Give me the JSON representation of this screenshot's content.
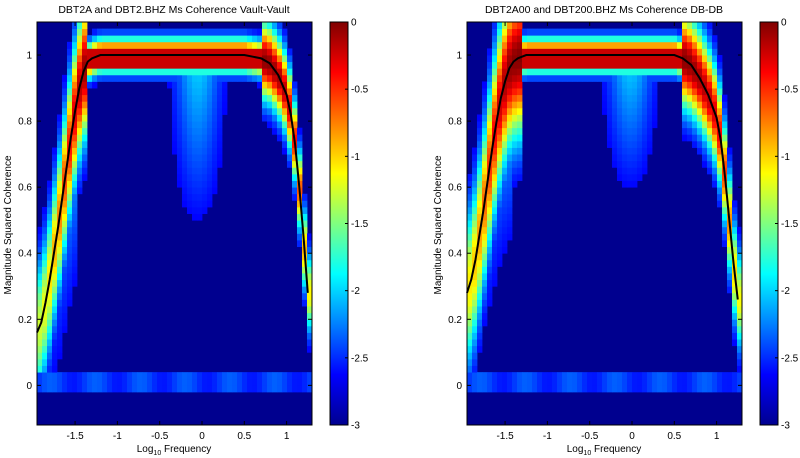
{
  "chart_data": [
    {
      "type": "heatmap",
      "title": "DBT2A and DBT2.BHZ Ms Coherence Vault-Vault",
      "xlabel": {
        "base": "Log",
        "sub": "10",
        "rest": " Frequency"
      },
      "ylabel": "Magnitude Squared Coherence",
      "xlim": [
        -1.95,
        1.3
      ],
      "ylim": [
        -0.12,
        1.1
      ],
      "xticks": [
        -1.5,
        -1,
        -0.5,
        0,
        0.5,
        1
      ],
      "xtick_labels": [
        "-1.5",
        "-1",
        "-0.5",
        "0",
        "0.5",
        "1"
      ],
      "yticks": [
        0,
        0.2,
        0.4,
        0.6,
        0.8,
        1
      ],
      "ytick_labels": [
        "0",
        "0.2",
        "0.4",
        "0.6",
        "0.8",
        "1"
      ],
      "colorbar": {
        "range": [
          -3,
          0
        ],
        "ticks": [
          0,
          -0.5,
          -1,
          -1.5,
          -2,
          -2.5,
          -3
        ],
        "tick_labels": [
          "0",
          "-0.5",
          "-1",
          "-1.5",
          "-2",
          "-2.5",
          "-3"
        ],
        "colormap": "jet"
      },
      "median_curve": {
        "x": [
          -1.95,
          -1.9,
          -1.85,
          -1.8,
          -1.75,
          -1.7,
          -1.65,
          -1.6,
          -1.55,
          -1.5,
          -1.45,
          -1.4,
          -1.35,
          -1.3,
          -1.25,
          -1.2,
          -1.1,
          -1.0,
          -0.5,
          0.0,
          0.5,
          0.6,
          0.7,
          0.8,
          0.9,
          1.0,
          1.05,
          1.1,
          1.15,
          1.2,
          1.25
        ],
        "y": [
          0.16,
          0.19,
          0.25,
          0.32,
          0.4,
          0.48,
          0.57,
          0.66,
          0.75,
          0.83,
          0.9,
          0.95,
          0.98,
          0.99,
          0.995,
          1.0,
          1.0,
          1.0,
          1.0,
          1.0,
          1.0,
          0.995,
          0.99,
          0.975,
          0.94,
          0.88,
          0.82,
          0.73,
          0.6,
          0.45,
          0.28
        ]
      },
      "heatmap_model": {
        "plateau_lo": -1.35,
        "plateau_hi": 0.7,
        "left_ramp": 0.14,
        "right_ramp": 0.08,
        "blob_center": -0.05,
        "blob_depth": 0.62,
        "bottom_band": [
          -0.015,
          0.035
        ]
      }
    },
    {
      "type": "heatmap",
      "title": "DBT2A00 and DBT200.BHZ Ms Coherence DB-DB",
      "xlabel": {
        "base": "Log",
        "sub": "10",
        "rest": " Frequency"
      },
      "ylabel": "Magnitude Squared Coherence",
      "xlim": [
        -1.95,
        1.3
      ],
      "ylim": [
        -0.12,
        1.1
      ],
      "xticks": [
        -1.5,
        -1,
        -0.5,
        0,
        0.5,
        1
      ],
      "xtick_labels": [
        "-1.5",
        "-1",
        "-0.5",
        "0",
        "0.5",
        "1"
      ],
      "yticks": [
        0,
        0.2,
        0.4,
        0.6,
        0.8,
        1
      ],
      "ytick_labels": [
        "0",
        "0.2",
        "0.4",
        "0.6",
        "0.8",
        "1"
      ],
      "colorbar": {
        "range": [
          -3,
          0
        ],
        "ticks": [
          0,
          -0.5,
          -1,
          -1.5,
          -2,
          -2.5,
          -3
        ],
        "tick_labels": [
          "0",
          "-0.5",
          "-1",
          "-1.5",
          "-2",
          "-2.5",
          "-3"
        ],
        "colormap": "jet"
      },
      "median_curve": {
        "x": [
          -1.95,
          -1.9,
          -1.85,
          -1.8,
          -1.75,
          -1.7,
          -1.65,
          -1.6,
          -1.55,
          -1.5,
          -1.45,
          -1.4,
          -1.35,
          -1.3,
          -1.25,
          -1.2,
          -1.1,
          -1.0,
          -0.5,
          0.0,
          0.5,
          0.6,
          0.7,
          0.8,
          0.9,
          1.0,
          1.05,
          1.1,
          1.15,
          1.2,
          1.25
        ],
        "y": [
          0.28,
          0.32,
          0.38,
          0.46,
          0.54,
          0.63,
          0.72,
          0.8,
          0.87,
          0.92,
          0.96,
          0.98,
          0.99,
          0.995,
          1.0,
          1.0,
          1.0,
          1.0,
          1.0,
          1.0,
          1.0,
          0.99,
          0.97,
          0.93,
          0.88,
          0.81,
          0.74,
          0.63,
          0.5,
          0.37,
          0.26
        ]
      },
      "heatmap_model": {
        "plateau_lo": -1.3,
        "plateau_hi": 0.6,
        "left_ramp": 0.16,
        "right_ramp": 0.1,
        "blob_center": -0.02,
        "blob_depth": 0.5,
        "bottom_band": [
          -0.015,
          0.035
        ]
      }
    }
  ]
}
